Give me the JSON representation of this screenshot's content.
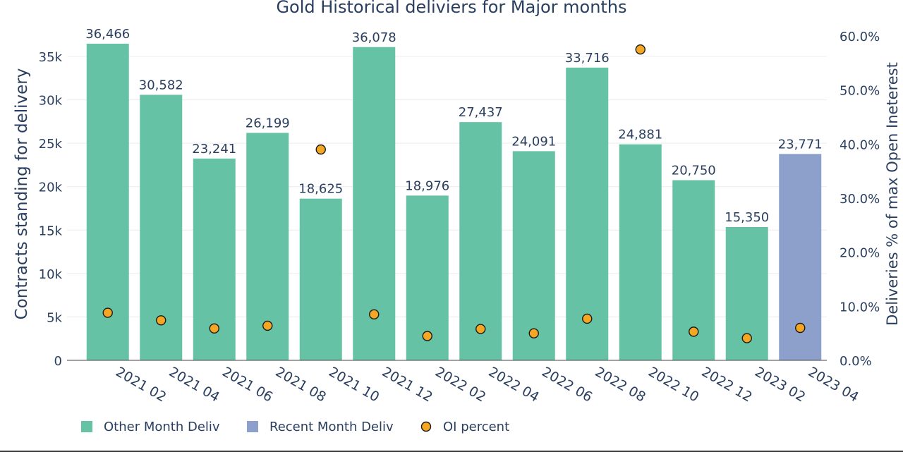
{
  "chart_data": {
    "type": "bar",
    "title": "Gold Historical deliviers for Major months",
    "categories": [
      "2021 02",
      "2021 04",
      "2021 06",
      "2021 08",
      "2021 10",
      "2021 12",
      "2022 02",
      "2022 04",
      "2022 06",
      "2022 08",
      "2022 10",
      "2022 12",
      "2023 02",
      "2023 04"
    ],
    "series": [
      {
        "name": "Other Month Deliv",
        "type": "bar",
        "color": "#66c2a5",
        "values": [
          36466,
          30582,
          23241,
          26199,
          18625,
          36078,
          18976,
          27437,
          24091,
          33716,
          24881,
          20750,
          15350,
          null
        ],
        "labels": [
          "36,466",
          "30,582",
          "23,241",
          "26,199",
          "18,625",
          "36,078",
          "18,976",
          "27,437",
          "24,091",
          "33,716",
          "24,881",
          "20,750",
          "15,350",
          ""
        ]
      },
      {
        "name": "Recent Month Deliv",
        "type": "bar",
        "color": "#8da0cb",
        "values": [
          null,
          null,
          null,
          null,
          null,
          null,
          null,
          null,
          null,
          null,
          null,
          null,
          null,
          23771
        ],
        "labels": [
          "",
          "",
          "",
          "",
          "",
          "",
          "",
          "",
          "",
          "",
          "",
          "",
          "",
          "23,771"
        ]
      },
      {
        "name": "OI percent",
        "type": "scatter",
        "axis": "right",
        "color": "#f5a623",
        "values": [
          8.8,
          7.4,
          5.9,
          6.4,
          39.0,
          8.5,
          4.5,
          5.8,
          5.0,
          7.7,
          57.5,
          5.3,
          4.1,
          6.0
        ]
      }
    ],
    "ylabel": "Contracts standing for delivery",
    "ylim": [
      0,
      37500
    ],
    "yticks": [
      0,
      5000,
      10000,
      15000,
      20000,
      25000,
      30000,
      35000
    ],
    "ytick_labels": [
      "0",
      "5k",
      "10k",
      "15k",
      "20k",
      "25k",
      "30k",
      "35k"
    ],
    "y2label": "Deliveries % of max Open Ineterest",
    "y2lim": [
      0,
      60
    ],
    "y2ticks": [
      0,
      10,
      20,
      30,
      40,
      50,
      60
    ],
    "y2tick_labels": [
      "0.0%",
      "10.0%",
      "20.0%",
      "30.0%",
      "40.0%",
      "50.0%",
      "60.0%"
    ],
    "grid": true,
    "legend_position": "bottom-left"
  }
}
